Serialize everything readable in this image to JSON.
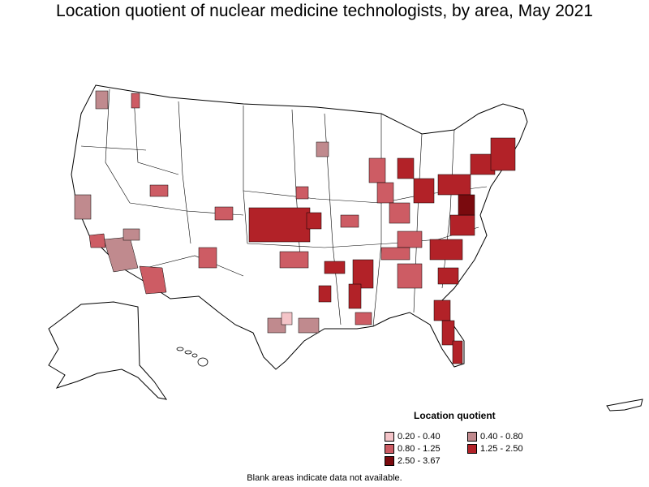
{
  "title": "Location quotient of nuclear medicine technologists, by area, May 2021",
  "legend": {
    "title": "Location quotient",
    "items": [
      {
        "label": "0.20 - 0.40",
        "color": "#f4c4c8"
      },
      {
        "label": "0.40 - 0.80",
        "color": "#c08a8e"
      },
      {
        "label": "0.80 - 1.25",
        "color": "#cd5c64"
      },
      {
        "label": "1.25 - 2.50",
        "color": "#b22228"
      },
      {
        "label": "2.50 - 3.67",
        "color": "#7a0a0e"
      }
    ]
  },
  "footnote": "Blank areas indicate data not available."
}
